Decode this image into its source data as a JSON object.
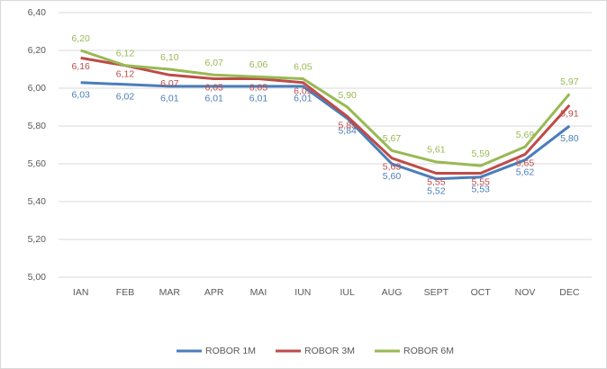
{
  "chart_data": {
    "type": "line",
    "categories": [
      "IAN",
      "FEB",
      "MAR",
      "APR",
      "MAI",
      "IUN",
      "IUL",
      "AUG",
      "SEPT",
      "OCT",
      "NOV",
      "DEC"
    ],
    "series": [
      {
        "name": "ROBOR 1M",
        "color": "#4a7ebb",
        "values": [
          6.03,
          6.02,
          6.01,
          6.01,
          6.01,
          6.01,
          5.84,
          5.6,
          5.52,
          5.53,
          5.62,
          5.8
        ],
        "value_labels": [
          "6,03",
          "6,02",
          "6,01",
          "6,01",
          "6,01",
          "6,01",
          "5,84",
          "5,60",
          "5,52",
          "5,53",
          "5,62",
          "5,80"
        ]
      },
      {
        "name": "ROBOR 3M",
        "color": "#be4b48",
        "values": [
          6.16,
          6.12,
          6.07,
          6.05,
          6.05,
          6.03,
          5.85,
          5.63,
          5.55,
          5.55,
          5.65,
          5.91
        ],
        "value_labels": [
          "6,16",
          "6,12",
          "6,07",
          "6,05",
          "6,05",
          "6,03",
          "5,85",
          "5,63",
          "5,55",
          "5,55",
          "5,65",
          "5,91"
        ]
      },
      {
        "name": "ROBOR 6M",
        "color": "#98b954",
        "values": [
          6.2,
          6.12,
          6.1,
          6.07,
          6.06,
          6.05,
          5.9,
          5.67,
          5.61,
          5.59,
          5.69,
          5.97
        ],
        "value_labels": [
          "6,20",
          "6,12",
          "6,10",
          "6,07",
          "6,06",
          "6,05",
          "5,90",
          "5,67",
          "5,61",
          "5,59",
          "5,69",
          "5,97"
        ]
      }
    ],
    "ylim": [
      5.0,
      6.4
    ],
    "yticks": [
      {
        "value": 5.0,
        "label": "5,00"
      },
      {
        "value": 5.2,
        "label": "5,20"
      },
      {
        "value": 5.4,
        "label": "5,40"
      },
      {
        "value": 5.6,
        "label": "5,60"
      },
      {
        "value": 5.8,
        "label": "5,80"
      },
      {
        "value": 6.0,
        "label": "6,00"
      },
      {
        "value": 6.2,
        "label": "6,20"
      },
      {
        "value": 6.4,
        "label": "6,40"
      }
    ],
    "grid": true,
    "legend": "bottom"
  }
}
